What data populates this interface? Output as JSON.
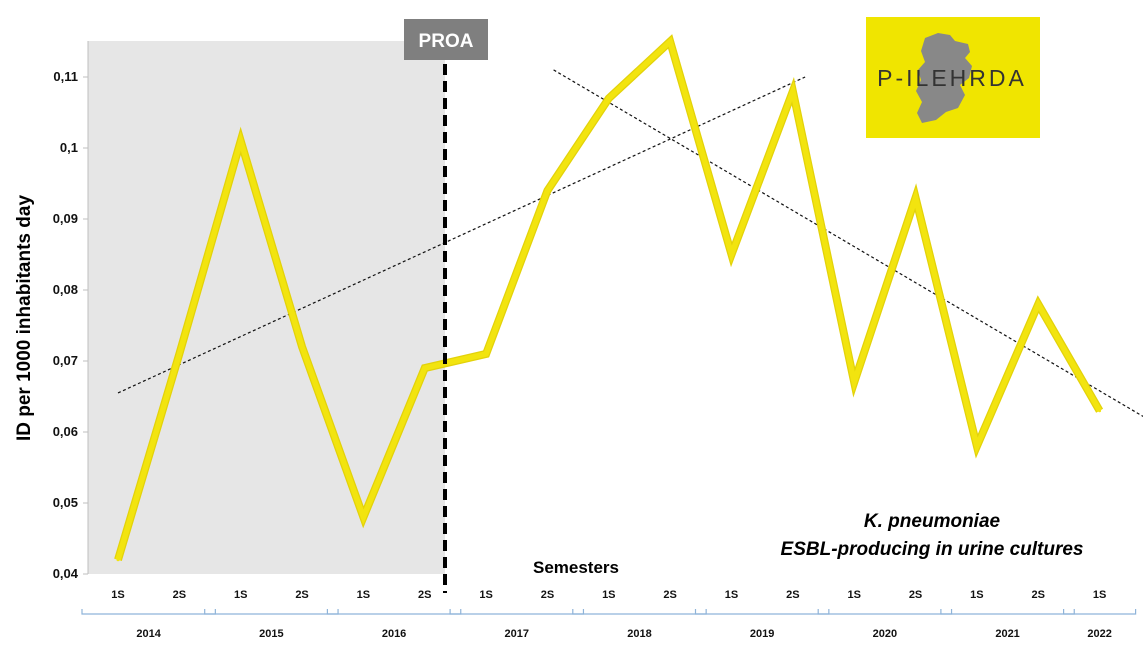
{
  "colors": {
    "line": "#f2e40f",
    "line_edge": "#e3d20a",
    "shade": "#e6e6e6",
    "proa_box": "#7f7f7f",
    "bracket": "#8fb4d9",
    "logo_bg": "#f0e500",
    "logo_map": "#888888"
  },
  "proa_label": "PROA",
  "logo": {
    "text": "P-ILEHRDA"
  },
  "annotation": {
    "line1": "K. pneumoniae",
    "line2": "ESBL-producing in urine cultures"
  },
  "chart_data": {
    "type": "line",
    "title": "",
    "xlabel": "Semesters",
    "ylabel": "ID per 1000 inhabitants day",
    "ylim": [
      0.04,
      0.115
    ],
    "yticks": [
      "0,04",
      "0,05",
      "0,06",
      "0,07",
      "0,08",
      "0,09",
      "0,1",
      "0,11"
    ],
    "ytick_values": [
      0.04,
      0.05,
      0.06,
      0.07,
      0.08,
      0.09,
      0.1,
      0.11
    ],
    "categories": [
      "1S",
      "2S",
      "1S",
      "2S",
      "1S",
      "2S",
      "1S",
      "2S",
      "1S",
      "2S",
      "1S",
      "2S",
      "1S",
      "2S",
      "1S",
      "2S",
      "1S"
    ],
    "years": [
      {
        "label": "2014",
        "semesters": 2
      },
      {
        "label": "2015",
        "semesters": 2
      },
      {
        "label": "2016",
        "semesters": 2
      },
      {
        "label": "2017",
        "semesters": 2
      },
      {
        "label": "2018",
        "semesters": 2
      },
      {
        "label": "2019",
        "semesters": 2
      },
      {
        "label": "2020",
        "semesters": 2
      },
      {
        "label": "2021",
        "semesters": 2
      },
      {
        "label": "2022",
        "semesters": 1
      }
    ],
    "series": [
      {
        "values": [
          0.042,
          0.071,
          0.101,
          0.072,
          0.048,
          0.069,
          0.071,
          0.094,
          0.107,
          0.115,
          0.085,
          0.108,
          0.067,
          0.093,
          0.058,
          0.078,
          0.063
        ]
      }
    ],
    "intervention": {
      "label": "PROA",
      "between": [
        "2016 2S",
        "2017 1S"
      ]
    },
    "shaded_period": "2014 1S – 2016 2S",
    "trend_lines": [
      {
        "name": "pre-PROA trend",
        "from": {
          "x": 0,
          "y": 0.0655
        },
        "to": {
          "x": 11.2,
          "y": 0.11
        }
      },
      {
        "name": "post-PROA trend",
        "from": {
          "x": 7.1,
          "y": 0.111
        },
        "to": {
          "x": 17.2,
          "y": 0.0597
        }
      }
    ],
    "grid": false,
    "legend": "none"
  }
}
